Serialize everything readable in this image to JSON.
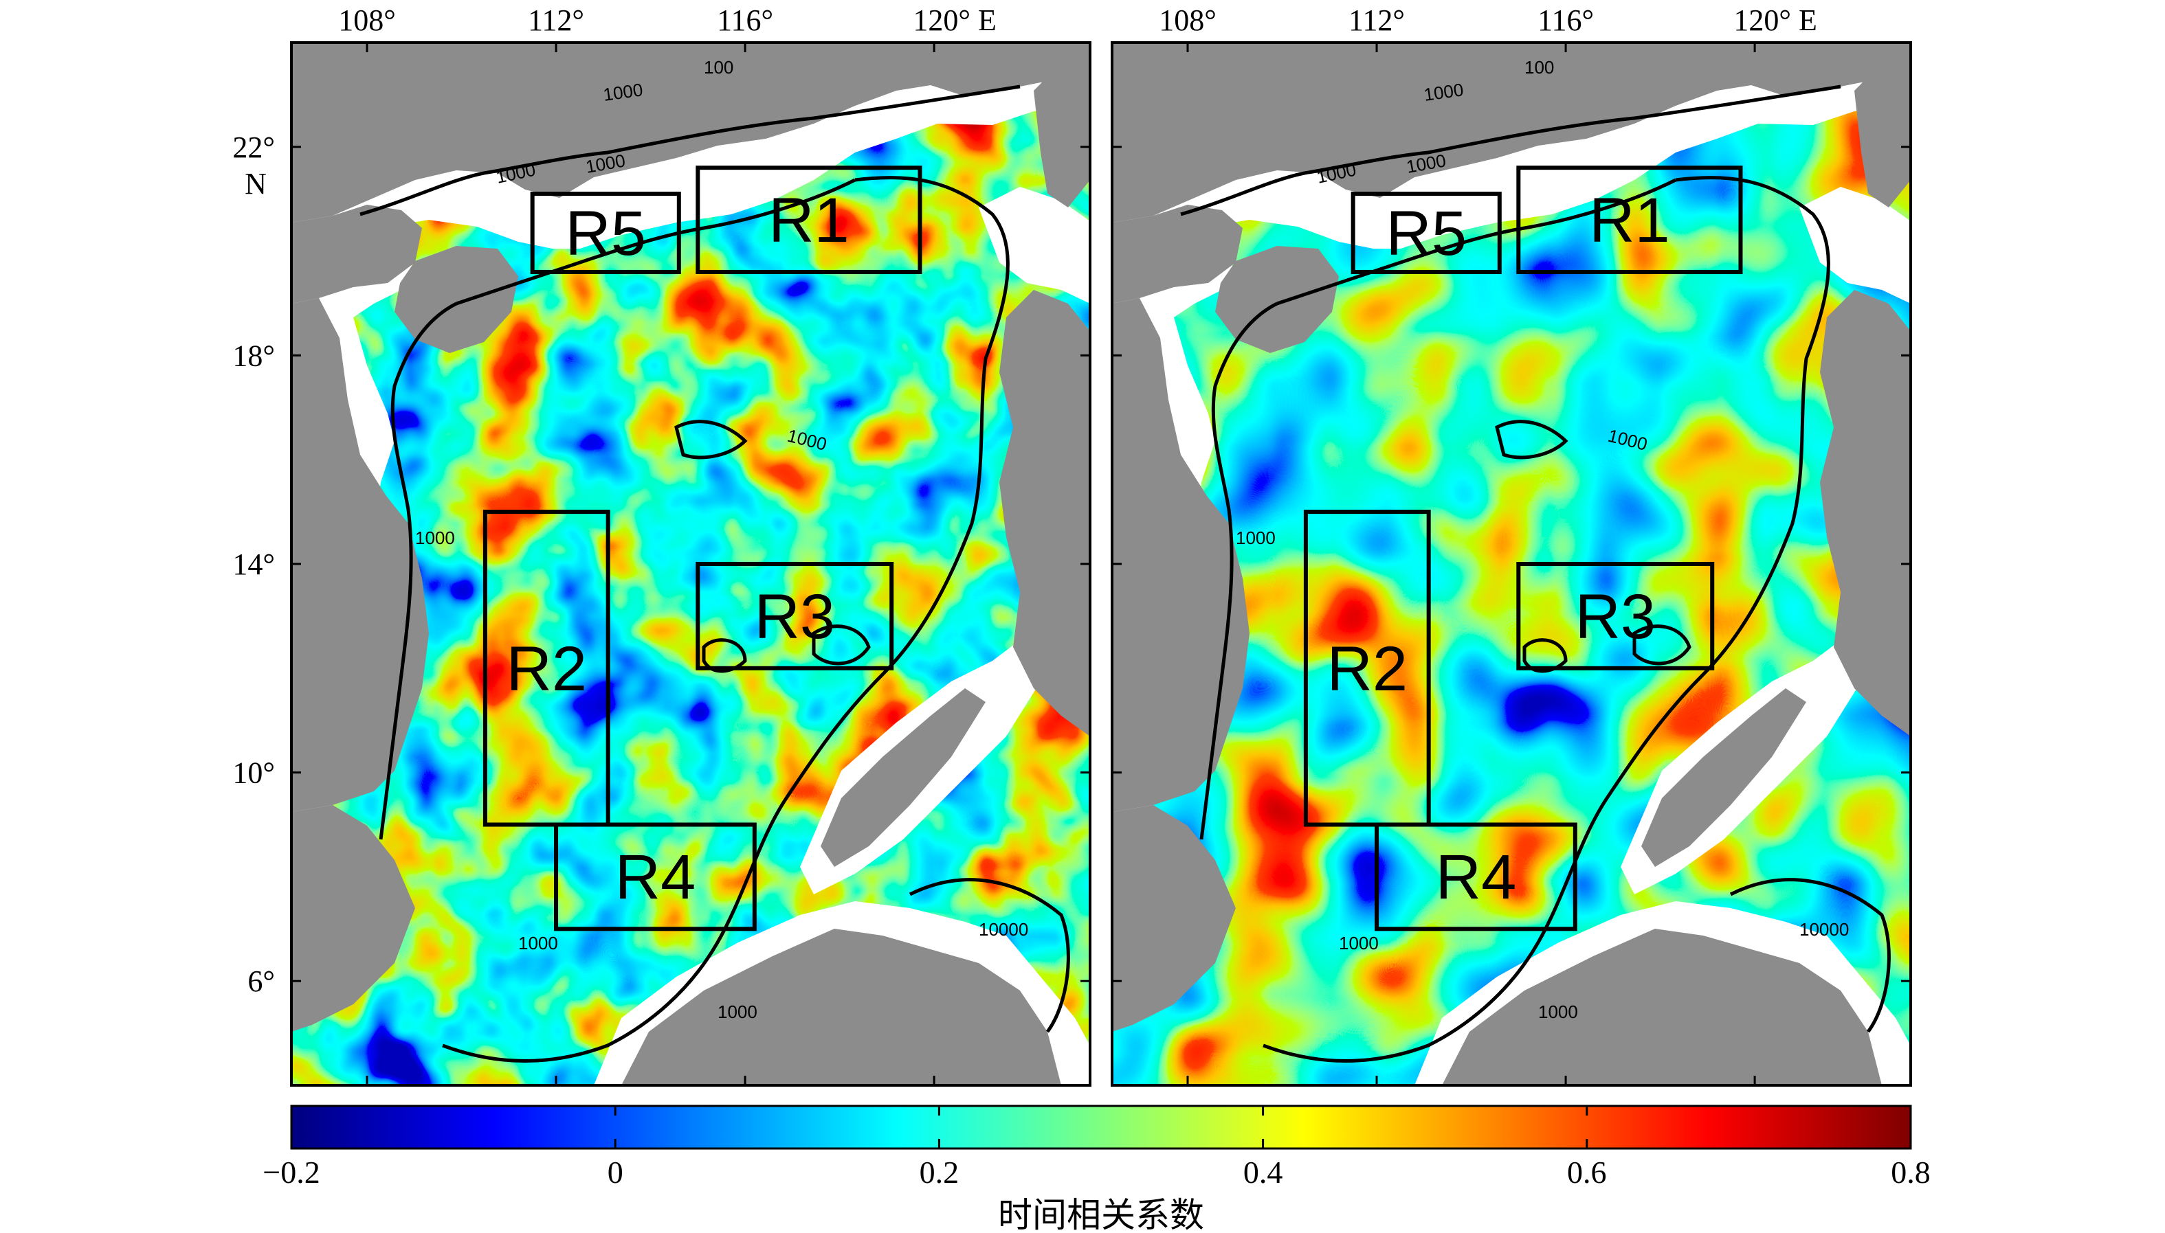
{
  "lon_ticks": [
    {
      "value": 108,
      "label": "108°"
    },
    {
      "value": 112,
      "label": "112°"
    },
    {
      "value": 116,
      "label": "116°"
    },
    {
      "value": 120,
      "label": "120° E"
    }
  ],
  "lat_ticks": [
    {
      "value": 22,
      "label": "22°"
    },
    {
      "value": 18,
      "label": "18°"
    },
    {
      "value": 14,
      "label": "14°"
    },
    {
      "value": 10,
      "label": "10°"
    },
    {
      "value": 6,
      "label": "6°"
    }
  ],
  "lat_unit_label": "N",
  "map_extent": {
    "lon": [
      106.4,
      123.3
    ],
    "lat": [
      4.0,
      24.0
    ]
  },
  "regions": [
    {
      "name": "R1",
      "lon": [
        115.0,
        119.7
      ],
      "lat": [
        19.6,
        21.6
      ]
    },
    {
      "name": "R2",
      "lon": [
        110.5,
        113.1
      ],
      "lat": [
        9.0,
        15.0
      ]
    },
    {
      "name": "R3",
      "lon": [
        115.0,
        119.1
      ],
      "lat": [
        12.0,
        14.0
      ]
    },
    {
      "name": "R4",
      "lon": [
        112.0,
        116.2
      ],
      "lat": [
        7.0,
        9.0
      ]
    },
    {
      "name": "R5",
      "lon": [
        111.5,
        114.6
      ],
      "lat": [
        19.6,
        21.1
      ]
    }
  ],
  "isobath_labels": [
    "1000",
    "1000",
    "1000",
    "100",
    "1000",
    "1000",
    "1000",
    "1000",
    "10000"
  ],
  "colorbar": {
    "min": -0.2,
    "max": 0.8,
    "tick_labels": [
      "−0.2",
      "0",
      "0.2",
      "0.4",
      "0.6",
      "0.8"
    ],
    "title": "时间相关系数",
    "colors": [
      "#00007f",
      "#0000ff",
      "#007fff",
      "#00ffff",
      "#7fff7f",
      "#ffff00",
      "#ff7f00",
      "#ff0000",
      "#7f0000"
    ]
  },
  "colors": {
    "land": "#8c8c8c",
    "shelf_nodata": "#ffffff",
    "frame": "#000000"
  }
}
